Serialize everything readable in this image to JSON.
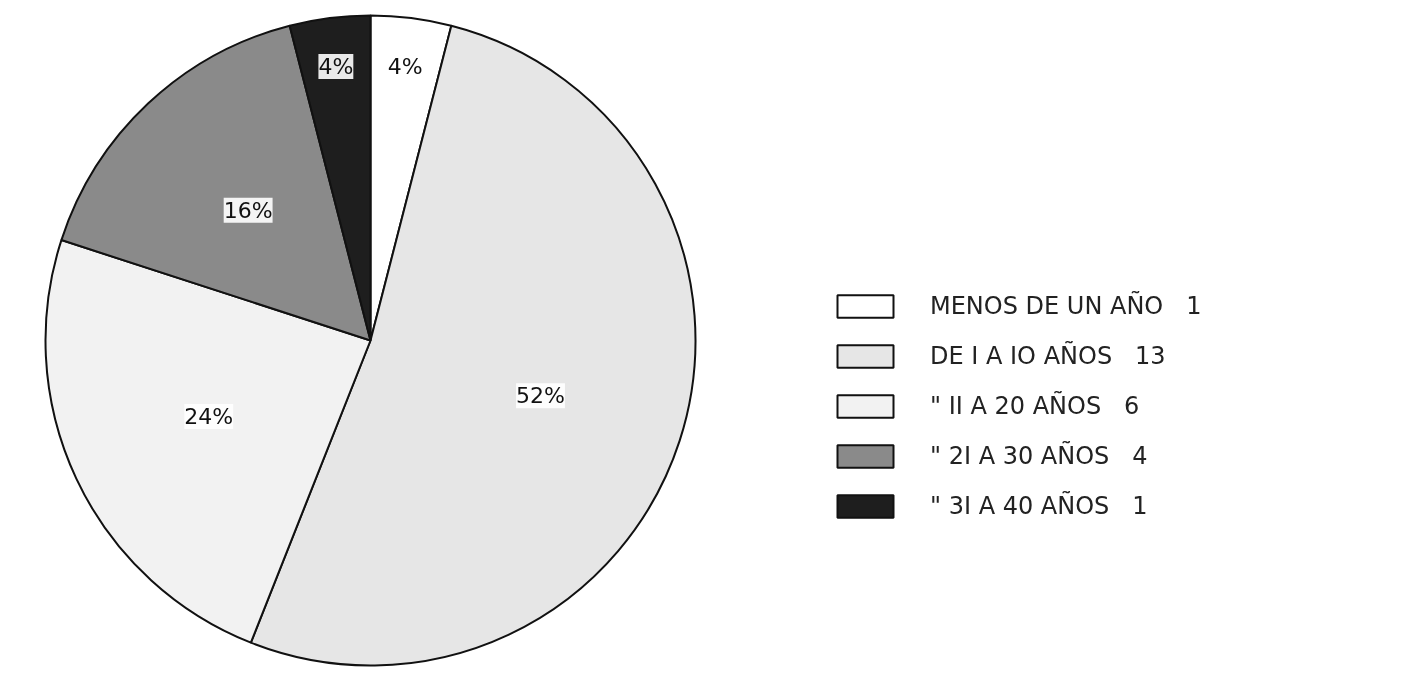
{
  "chart_data": {
    "type": "pie",
    "categories": [
      "MENOS DE UN AÑO   1",
      "DE I A IO AÑOS   13",
      "\" II A 20 AÑOS   6",
      "\" 2I A 30 AÑOS   4",
      "\" 3I A 40 AÑOS   1"
    ],
    "values": [
      4,
      52,
      24,
      16,
      4
    ],
    "value_labels": [
      "4%",
      "52%",
      "24%",
      "16%",
      "4%"
    ],
    "colors": [
      "#ffffff",
      "#e6e6e6",
      "#f2f2f2",
      "#8a8a8a",
      "#1e1e1e"
    ],
    "legend": "right"
  }
}
